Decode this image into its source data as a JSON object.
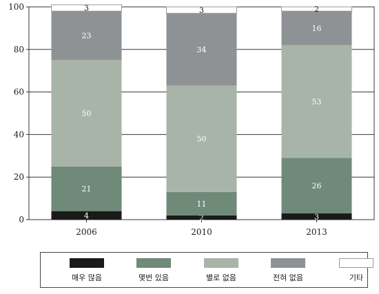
{
  "chart_data": {
    "type": "bar",
    "stacked": true,
    "categories": [
      "2006",
      "2010",
      "2013"
    ],
    "series": [
      {
        "name": "매우 많음",
        "values": [
          4,
          2,
          3
        ],
        "color": "#1a1a1a"
      },
      {
        "name": "몇번 있음",
        "values": [
          21,
          11,
          26
        ],
        "color": "#6f8a78"
      },
      {
        "name": "별로 없음",
        "values": [
          50,
          50,
          53
        ],
        "color": "#a7b4a7"
      },
      {
        "name": "전혀 없음",
        "values": [
          23,
          34,
          16
        ],
        "color": "#8f9295"
      },
      {
        "name": "기타",
        "values": [
          3,
          3,
          2
        ],
        "color": "#ffffff"
      }
    ],
    "ylim": [
      0,
      100
    ],
    "yticks": [
      0,
      20,
      40,
      60,
      80,
      100
    ],
    "grid": true,
    "legend_position": "bottom"
  }
}
